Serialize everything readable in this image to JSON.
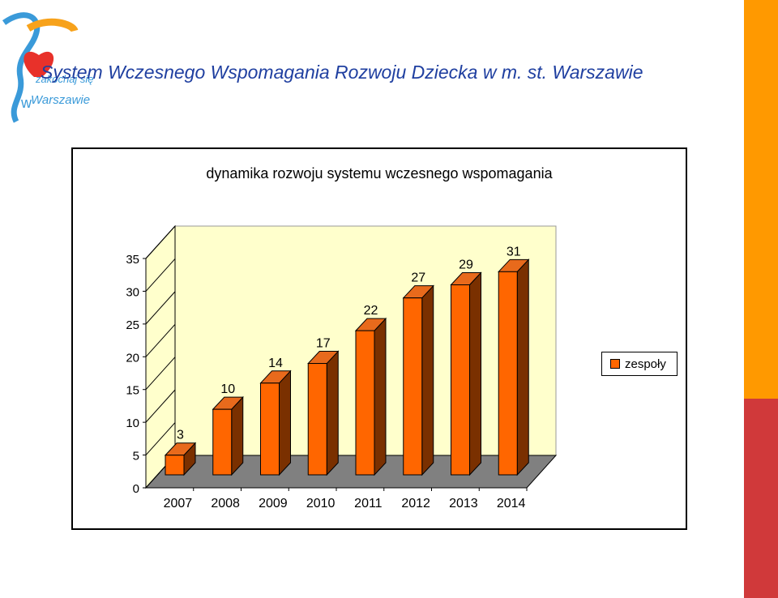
{
  "header": {
    "title": "System Wczesnego Wspomagania Rozwoju Dziecka w m. st. Warszawie"
  },
  "logo": {
    "text_line1": "zakochaj się",
    "text_line2": "w",
    "text_line3": "Warszawie"
  },
  "colors": {
    "accent_orange": "#ff9900",
    "accent_red": "#d0393a",
    "bar_front": "#ff6600",
    "bar_side": "#7a3000",
    "bar_top": "#e86a1c",
    "back_wall": "#ffffcc",
    "floor": "#808080",
    "title_blue": "#1f3fa0"
  },
  "chart_data": {
    "type": "bar",
    "title": "dynamika rozwoju systemu wczesnego wspomagania",
    "categories": [
      "2007",
      "2008",
      "2009",
      "2010",
      "2011",
      "2012",
      "2013",
      "2014"
    ],
    "series": [
      {
        "name": "zespoły",
        "values": [
          3,
          10,
          14,
          17,
          22,
          27,
          29,
          31
        ]
      }
    ],
    "ylim": [
      0,
      35
    ],
    "yticks": [
      "0",
      "5",
      "10",
      "15",
      "20",
      "25",
      "30",
      "35"
    ],
    "xlabel": "",
    "ylabel": "",
    "legend_position": "right",
    "grid": false,
    "style": "3d",
    "data_labels": true
  }
}
